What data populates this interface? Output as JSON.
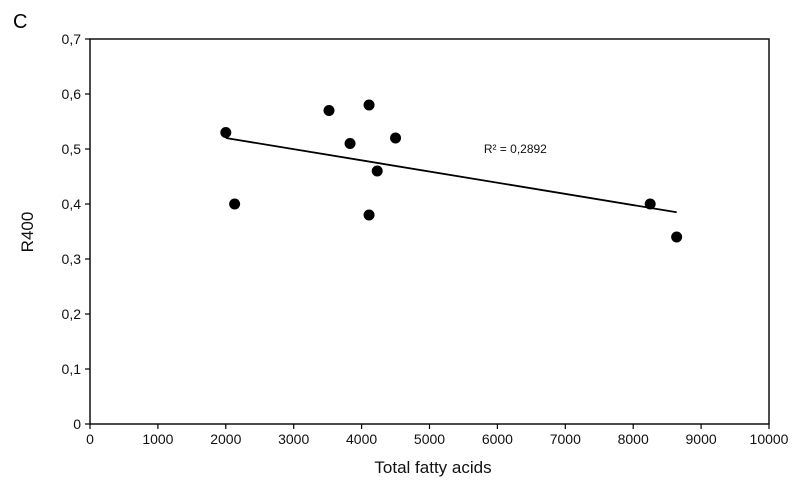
{
  "panel_label": "C",
  "chart_data": {
    "type": "scatter",
    "title": "",
    "xlabel": "Total fatty acids",
    "ylabel": "R400",
    "xlim": [
      0,
      10000
    ],
    "ylim": [
      0,
      0.7
    ],
    "x_ticks": [
      0,
      1000,
      2000,
      3000,
      4000,
      5000,
      6000,
      7000,
      8000,
      9000,
      10000
    ],
    "y_ticks": [
      0,
      0.1,
      0.2,
      0.3,
      0.4,
      0.5,
      0.6,
      0.7
    ],
    "x_tick_labels": [
      "0",
      "1000",
      "2000",
      "3000",
      "4000",
      "5000",
      "6000",
      "7000",
      "8000",
      "9000",
      "10000"
    ],
    "y_tick_labels": [
      "0",
      "0,1",
      "0,2",
      "0,3",
      "0,4",
      "0,5",
      "0,6",
      "0,7"
    ],
    "grid": false,
    "series": [
      {
        "points": [
          {
            "x": 2000,
            "y": 0.53
          },
          {
            "x": 2130,
            "y": 0.4
          },
          {
            "x": 3520,
            "y": 0.57
          },
          {
            "x": 3830,
            "y": 0.51
          },
          {
            "x": 4110,
            "y": 0.58
          },
          {
            "x": 4110,
            "y": 0.38
          },
          {
            "x": 4230,
            "y": 0.46
          },
          {
            "x": 4500,
            "y": 0.52
          },
          {
            "x": 8250,
            "y": 0.4
          },
          {
            "x": 8640,
            "y": 0.34
          }
        ]
      }
    ],
    "trendline": {
      "x": [
        2000,
        8640
      ],
      "y": [
        0.52,
        0.385
      ]
    },
    "annotation": {
      "text": "R² = 0,2892",
      "x": 5800,
      "y": 0.5
    }
  }
}
